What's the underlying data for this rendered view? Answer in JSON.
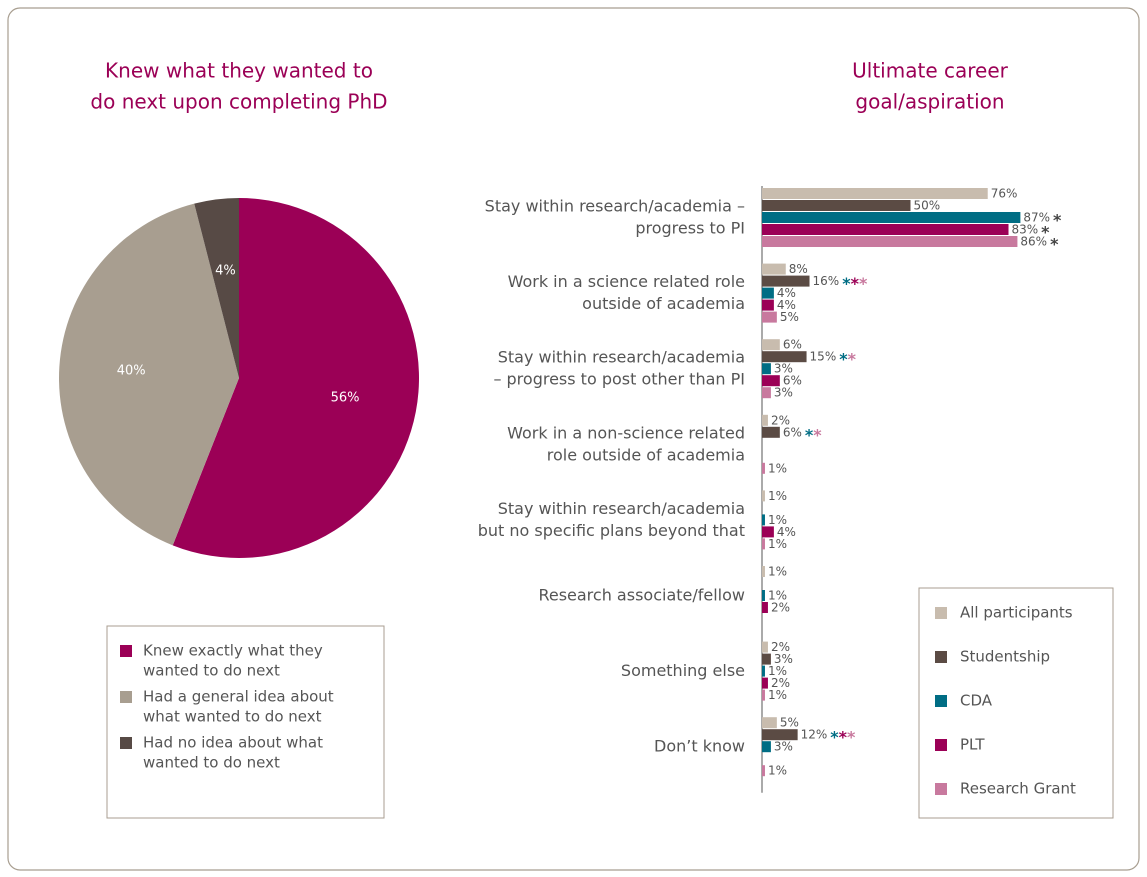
{
  "chart_data": [
    {
      "type": "pie",
      "title": [
        "Knew what they wanted to",
        "do next upon completing PhD"
      ],
      "labels": [
        [
          "Knew exactly what they",
          "wanted to do next"
        ],
        [
          "Had a general idea about",
          "what wanted to do next"
        ],
        [
          "Had no idea about what",
          "wanted to do next"
        ]
      ],
      "values": [
        56,
        40,
        4
      ],
      "value_labels": [
        "56%",
        "40%",
        "4%"
      ],
      "colors": [
        "#9b0056",
        "#a89e90",
        "#574a45"
      ]
    },
    {
      "type": "hbar",
      "title": [
        "Ultimate career",
        "goal/aspiration"
      ],
      "categories": [
        [
          "Stay within research/academia –",
          "progress to PI"
        ],
        [
          "Work in a science related role",
          "outside of academia"
        ],
        [
          "Stay within research/academia",
          "– progress to post other than PI"
        ],
        [
          "Work in a non-science related",
          "role outside of academia"
        ],
        [
          "Stay within research/academia",
          "but no specific plans beyond that"
        ],
        [
          "Research associate/fellow"
        ],
        [
          "Something else"
        ],
        [
          "Don’t know"
        ]
      ],
      "xlim": [
        0,
        100
      ],
      "series": [
        {
          "name": "All participants",
          "color": "#c8bcae",
          "values": [
            76,
            8,
            6,
            2,
            1,
            1,
            2,
            5
          ],
          "value_labels": [
            "76%",
            "8%",
            "6%",
            "2%",
            "1%",
            "1%",
            "2%",
            "5%"
          ]
        },
        {
          "name": "Studentship",
          "color": "#5b4b44",
          "values": [
            50,
            16,
            15,
            6,
            null,
            null,
            3,
            12
          ],
          "value_labels": [
            "50%",
            "16%",
            "15%",
            "6%",
            null,
            null,
            "3%",
            "12%"
          ],
          "asterisks": [
            [],
            [
              {
                "text": "*",
                "color": "#006d84"
              },
              {
                "text": "*",
                "color": "#9b0056"
              },
              {
                "text": "*",
                "color": "#c8799e"
              }
            ],
            [
              {
                "text": "*",
                "color": "#006d84"
              },
              {
                "text": "*",
                "color": "#c8799e"
              }
            ],
            [
              {
                "text": "*",
                "color": "#006d84"
              },
              {
                "text": "*",
                "color": "#c8799e"
              }
            ],
            [],
            [],
            [],
            [
              {
                "text": "*",
                "color": "#006d84"
              },
              {
                "text": "*",
                "color": "#9b0056"
              },
              {
                "text": "*",
                "color": "#c8799e"
              }
            ]
          ]
        },
        {
          "name": "CDA",
          "color": "#006d84",
          "values": [
            87,
            4,
            3,
            null,
            1,
            1,
            1,
            3
          ],
          "value_labels": [
            "87%",
            "4%",
            "3%",
            null,
            "1%",
            "1%",
            "1%",
            "3%"
          ],
          "asterisks": [
            [
              {
                "text": "*",
                "color": "#444444"
              }
            ],
            [],
            [],
            [],
            [],
            [],
            [],
            []
          ]
        },
        {
          "name": "PLT",
          "color": "#9b0056",
          "values": [
            83,
            4,
            6,
            null,
            4,
            2,
            2,
            null
          ],
          "value_labels": [
            "83%",
            "4%",
            "6%",
            null,
            "4%",
            "2%",
            "2%",
            null
          ],
          "asterisks": [
            [
              {
                "text": "*",
                "color": "#444444"
              }
            ],
            [],
            [],
            [],
            [],
            [],
            [],
            []
          ]
        },
        {
          "name": "Research Grant",
          "color": "#c8799e",
          "values": [
            86,
            5,
            3,
            1,
            1,
            null,
            1,
            1
          ],
          "value_labels": [
            "86%",
            "5%",
            "3%",
            "1%",
            "1%",
            null,
            "1%",
            "1%"
          ],
          "asterisks": [
            [
              {
                "text": "*",
                "color": "#444444"
              }
            ],
            [],
            [],
            [],
            [],
            [],
            [],
            []
          ]
        }
      ]
    }
  ]
}
